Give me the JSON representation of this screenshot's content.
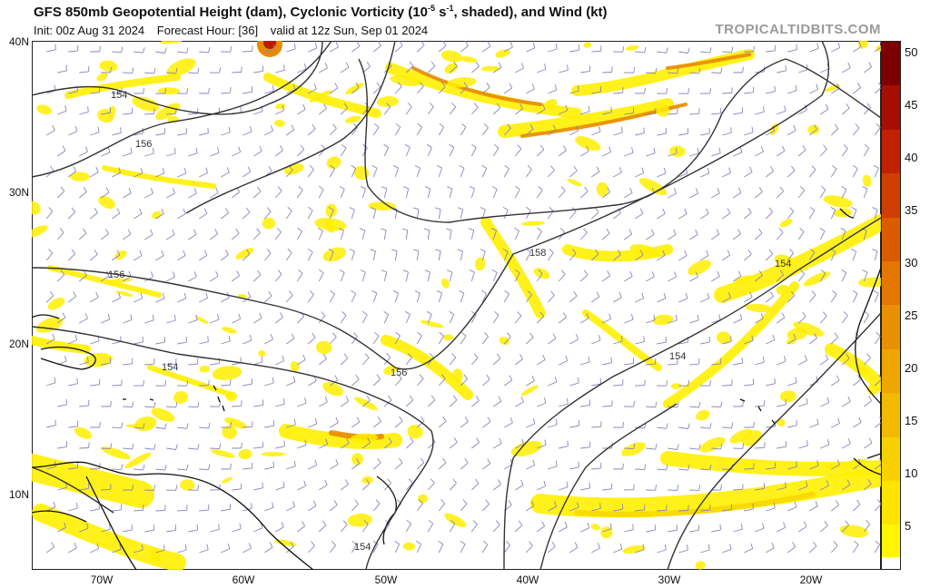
{
  "header": {
    "title_main": "GFS 850mb Geopotential Height (dam), Cyclonic Vorticity (10",
    "title_exp": "-5",
    "title_unit": " s",
    "title_unit_exp": "-1",
    "title_tail": ", shaded), and Wind (kt)",
    "init": "Init: 00z Aug 31 2024",
    "forecast_hour": "Forecast Hour: [36]",
    "valid": "valid at 12z Sun, Sep 01 2024",
    "brand": "TROPICALTIDBITS.COM"
  },
  "map": {
    "lat_labels": [
      "40N",
      "30N",
      "20N",
      "10N"
    ],
    "lon_labels": [
      "70W",
      "60W",
      "50W",
      "40W",
      "30W",
      "20W"
    ],
    "contour_labels": [
      "154",
      "156",
      "156",
      "154",
      "156",
      "158",
      "154",
      "154",
      "154"
    ],
    "colors": {
      "light_yellow": "#ffef00",
      "yellow": "#f6d800",
      "orange": "#e88a00",
      "red": "#b81c00",
      "contour": "#333333",
      "barb": "#8a86b8",
      "coast": "#111111"
    }
  },
  "colorbar": {
    "labels": [
      "50",
      "45",
      "40",
      "35",
      "30",
      "25",
      "20",
      "15",
      "10",
      "5"
    ],
    "bands": [
      "#fff500",
      "#ffe400",
      "#f9d100",
      "#f3bb00",
      "#eea600",
      "#e99000",
      "#e37700",
      "#db5b00",
      "#cf3d00",
      "#c02200",
      "#a60f00",
      "#7d0000"
    ]
  }
}
